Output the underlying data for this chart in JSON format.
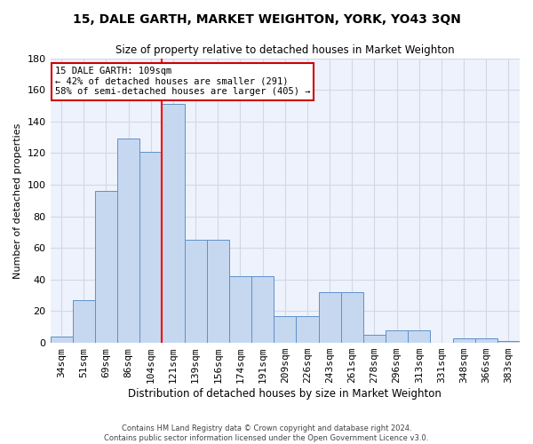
{
  "title": "15, DALE GARTH, MARKET WEIGHTON, YORK, YO43 3QN",
  "subtitle": "Size of property relative to detached houses in Market Weighton",
  "xlabel": "Distribution of detached houses by size in Market Weighton",
  "ylabel": "Number of detached properties",
  "bar_color": "#c5d8f0",
  "bar_edge_color": "#6090c8",
  "categories": [
    "34sqm",
    "51sqm",
    "69sqm",
    "86sqm",
    "104sqm",
    "121sqm",
    "139sqm",
    "156sqm",
    "174sqm",
    "191sqm",
    "209sqm",
    "226sqm",
    "243sqm",
    "261sqm",
    "278sqm",
    "296sqm",
    "313sqm",
    "331sqm",
    "348sqm",
    "366sqm",
    "383sqm"
  ],
  "values": [
    4,
    27,
    96,
    129,
    121,
    151,
    65,
    65,
    42,
    42,
    17,
    17,
    32,
    32,
    5,
    8,
    8,
    0,
    3,
    3,
    1
  ],
  "ylim": [
    0,
    180
  ],
  "yticks": [
    0,
    20,
    40,
    60,
    80,
    100,
    120,
    140,
    160,
    180
  ],
  "red_line_bin": 4,
  "property_size": "109sqm",
  "annotation_title": "15 DALE GARTH: 109sqm",
  "annotation_line1": "← 42% of detached houses are smaller (291)",
  "annotation_line2": "58% of semi-detached houses are larger (405) →",
  "annotation_box_color": "#ffffff",
  "annotation_box_edge": "#cc0000",
  "grid_color": "#d0d8e8",
  "background_color": "#eef2fc",
  "footer1": "Contains HM Land Registry data © Crown copyright and database right 2024.",
  "footer2": "Contains public sector information licensed under the Open Government Licence v3.0."
}
